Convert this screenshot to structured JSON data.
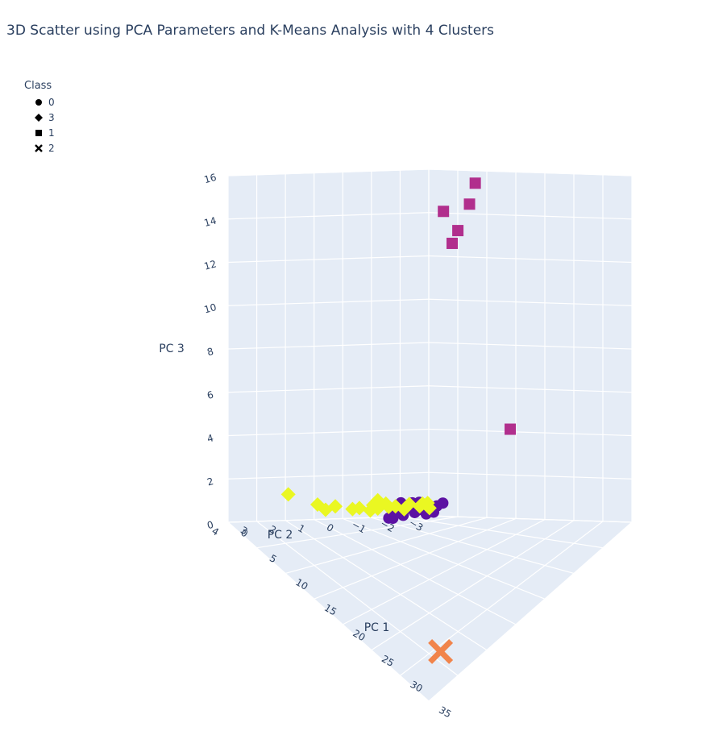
{
  "chart_data": {
    "type": "scatter3d",
    "title": "3D Scatter using PCA Parameters and K-Means Analysis with 4 Clusters",
    "legend": {
      "title": "Class",
      "placement": "top-left",
      "entries": [
        {
          "name": "0",
          "symbol": "circle"
        },
        {
          "name": "3",
          "symbol": "diamond"
        },
        {
          "name": "1",
          "symbol": "square"
        },
        {
          "name": "2",
          "symbol": "x"
        }
      ]
    },
    "axes": {
      "x": {
        "label": "PC 1",
        "range": [
          0,
          35
        ],
        "ticks": [
          0,
          5,
          10,
          15,
          20,
          25,
          30,
          35
        ]
      },
      "y": {
        "label": "PC 2",
        "range": [
          -3,
          4
        ],
        "ticks": [
          -3,
          -2,
          -1,
          0,
          1,
          2,
          3,
          4
        ]
      },
      "z": {
        "label": "PC 3",
        "range": [
          0,
          16
        ],
        "ticks": [
          0,
          2,
          4,
          6,
          8,
          10,
          12,
          14,
          16
        ]
      }
    },
    "grid": true,
    "series": [
      {
        "name": "0",
        "symbol": "circle",
        "color": "#5c12a3",
        "points": [
          [
            2,
            -1.9,
            0.5
          ],
          [
            2.5,
            -1.3,
            0.3
          ],
          [
            3,
            -2.2,
            0.4
          ],
          [
            3.5,
            -1.6,
            0.6
          ],
          [
            3,
            -1.0,
            0.2
          ],
          [
            4,
            -1.8,
            0.5
          ],
          [
            4.5,
            -1.2,
            0.4
          ],
          [
            2.2,
            -2.5,
            0.6
          ],
          [
            3.8,
            -2.4,
            0.3
          ],
          [
            5,
            -1.5,
            0.5
          ],
          [
            4.2,
            -0.9,
            0.3
          ],
          [
            2.8,
            -1.6,
            0.7
          ],
          [
            3.3,
            -2.0,
            0.8
          ],
          [
            1.8,
            -1.4,
            0.4
          ],
          [
            4.8,
            -2.0,
            0.6
          ],
          [
            3.6,
            -1.3,
            0.9
          ],
          [
            2.4,
            -2.8,
            0.5
          ],
          [
            5.5,
            -1.8,
            0.4
          ],
          [
            4.4,
            -2.6,
            0.7
          ],
          [
            1.6,
            -2.1,
            0.7
          ]
        ]
      },
      {
        "name": "3",
        "symbol": "diamond",
        "color": "#eaf722",
        "points": [
          [
            0.3,
            -1.0,
            0.6
          ],
          [
            0.5,
            -1.5,
            0.5
          ],
          [
            0.8,
            -0.8,
            0.4
          ],
          [
            1.0,
            -1.3,
            0.7
          ],
          [
            0.2,
            -1.8,
            0.5
          ],
          [
            0.6,
            -2.2,
            0.6
          ],
          [
            1.2,
            -1.9,
            0.4
          ],
          [
            0.4,
            -0.5,
            0.5
          ],
          [
            0.9,
            -2.6,
            0.6
          ],
          [
            1.4,
            -2.4,
            0.5
          ],
          [
            0.1,
            -1.2,
            0.8
          ],
          [
            0.7,
            -0.2,
            0.5
          ],
          [
            0.2,
            0.3,
            0.6
          ],
          [
            0.5,
            0.7,
            0.5
          ],
          [
            0.1,
            0.9,
            0.7
          ],
          [
            1.6,
            -2.7,
            0.4
          ],
          [
            0.3,
            -2.9,
            0.6
          ],
          [
            1.1,
            -1.0,
            0.5
          ],
          [
            0.0,
            1.9,
            1.2
          ]
        ]
      },
      {
        "name": "1",
        "symbol": "square",
        "color": "#b12f8d",
        "points": [
          [
            5,
            -2.5,
            14.2
          ],
          [
            9,
            -2.8,
            15.5
          ],
          [
            9,
            -2.6,
            14.6
          ],
          [
            6.5,
            -2.7,
            13.3
          ],
          [
            7,
            -2.4,
            12.8
          ],
          [
            20,
            -1.8,
            5
          ]
        ]
      },
      {
        "name": "2",
        "symbol": "x",
        "color": "#f1844b",
        "points": [
          [
            32,
            3,
            0.5
          ]
        ]
      }
    ]
  }
}
